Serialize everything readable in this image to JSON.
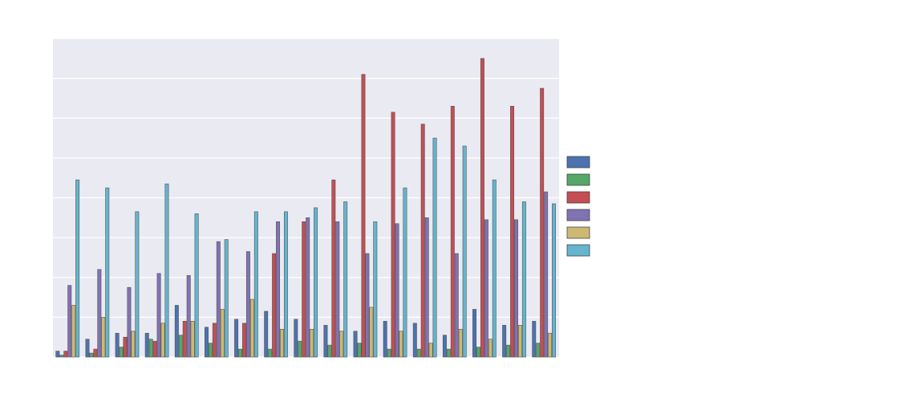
{
  "chart_data": {
    "type": "bar",
    "title": "",
    "xlabel": "",
    "ylabel": "",
    "legend_title": "",
    "legend_position": "right, outside",
    "grid": true,
    "ylim": [
      0,
      8
    ],
    "categories": [
      "",
      "",
      "",
      "",
      "",
      "",
      "",
      "",
      "",
      "",
      "",
      "",
      "",
      "",
      "",
      "",
      ""
    ],
    "series": [
      {
        "color": "#4c72b0",
        "values": [
          0.15,
          0.45,
          0.6,
          0.6,
          1.3,
          0.75,
          0.95,
          1.15,
          0.95,
          0.8,
          0.65,
          0.9,
          0.85,
          0.55,
          1.2,
          0.8,
          0.9
        ]
      },
      {
        "color": "#55a868",
        "values": [
          0.05,
          0.1,
          0.25,
          0.45,
          0.55,
          0.35,
          0.2,
          0.2,
          0.4,
          0.3,
          0.35,
          0.2,
          0.2,
          0.2,
          0.25,
          0.3,
          0.35
        ]
      },
      {
        "color": "#c44e52",
        "values": [
          0.15,
          0.2,
          0.5,
          0.4,
          0.9,
          0.85,
          0.85,
          2.6,
          3.4,
          4.45,
          7.1,
          6.15,
          5.85,
          6.3,
          7.5,
          6.3,
          6.75
        ]
      },
      {
        "color": "#8172b2",
        "values": [
          1.8,
          2.2,
          1.75,
          2.1,
          2.05,
          2.9,
          2.65,
          3.4,
          3.5,
          3.4,
          2.6,
          3.35,
          3.5,
          2.6,
          3.45,
          3.45,
          4.15
        ]
      },
      {
        "color": "#ccb974",
        "values": [
          1.3,
          1.0,
          0.65,
          0.85,
          0.9,
          1.2,
          1.45,
          0.7,
          0.7,
          0.65,
          1.25,
          0.65,
          0.35,
          0.7,
          0.45,
          0.8,
          0.6
        ]
      },
      {
        "color": "#64b5cd",
        "values": [
          4.45,
          4.25,
          3.65,
          4.35,
          3.6,
          2.95,
          3.65,
          3.65,
          3.75,
          3.9,
          3.4,
          4.25,
          5.5,
          5.3,
          4.45,
          3.9,
          3.85
        ]
      }
    ]
  },
  "legend": {
    "title": "",
    "entries": [
      "",
      "",
      "",
      "",
      "",
      ""
    ]
  }
}
